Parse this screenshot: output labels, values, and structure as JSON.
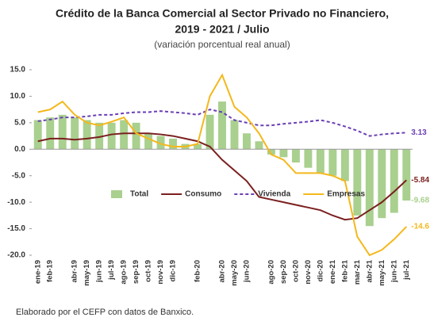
{
  "chart_data": {
    "type": "bar-line",
    "title": "Crédito de la Banca Comercial al Sector Privado no Financiero,",
    "title_line2": "2019 - 2021 / Julio",
    "subtitle": "(variación porcentual real anual)",
    "note": "Elaborado por el CEFP con datos de Banxico.",
    "categories": [
      "ene-19",
      "feb-19",
      null,
      "abr-19",
      "may-19",
      "jun-19",
      "jul-19",
      "ago-19",
      "sep-19",
      "oct-19",
      "nov-19",
      "dic-19",
      null,
      "feb-20",
      null,
      "abr-20",
      "may-20",
      "jun-20",
      null,
      "ago-20",
      "sep-20",
      "oct-20",
      "nov-20",
      "dic-20",
      "ene-21",
      "feb-21",
      "mar-21",
      "abr-21",
      "may-21",
      "jun-21",
      "jul-21"
    ],
    "ylim": [
      -20,
      15
    ],
    "yticks": [
      {
        "value": 15,
        "label": "15.0"
      },
      {
        "value": 10,
        "label": "10.0"
      },
      {
        "value": 5,
        "label": "5.0"
      },
      {
        "value": 0,
        "label": "0.0"
      },
      {
        "value": -5,
        "label": "-5.0"
      },
      {
        "value": -10,
        "label": "-10.0"
      },
      {
        "value": -15,
        "label": "-15.0"
      },
      {
        "value": -20,
        "label": "-20.0"
      }
    ],
    "series": [
      {
        "name": "Total",
        "kind": "bar",
        "color": "#a9d08e",
        "values": [
          5.5,
          6,
          6.5,
          6,
          5.5,
          5,
          5,
          5.5,
          5,
          3,
          2.5,
          2,
          1,
          1,
          6.5,
          9,
          5.5,
          3,
          1.5,
          -1,
          -1.5,
          -2.5,
          -3.5,
          -4.5,
          -5,
          -6,
          -12.5,
          -14.5,
          -13,
          -12,
          -9.68
        ]
      },
      {
        "name": "Consumo",
        "kind": "line",
        "color": "#7b1f1f",
        "values": [
          1.5,
          2,
          2,
          1.8,
          2,
          2.3,
          2.8,
          3,
          3,
          3,
          2.8,
          2.5,
          2,
          1.5,
          0.5,
          -2,
          -4,
          -6,
          -9,
          -9.5,
          -10,
          -10.5,
          -11,
          -11.5,
          -12.5,
          -13.3,
          -13,
          -11.5,
          -10,
          -8,
          -5.84
        ]
      },
      {
        "name": "Vivienda",
        "kind": "line",
        "dashed": true,
        "color": "#6a3fb5",
        "values": [
          5.3,
          5.6,
          6,
          6,
          6.2,
          6.5,
          6.5,
          6.8,
          7,
          7,
          7.2,
          7,
          6.8,
          6.5,
          7.5,
          7,
          5.5,
          5,
          4.5,
          4.5,
          4.8,
          5,
          5.2,
          5.5,
          5,
          4.3,
          3.5,
          2.5,
          2.8,
          3,
          3.13
        ]
      },
      {
        "name": "Empresas",
        "kind": "line",
        "color": "#f4b81c",
        "values": [
          7,
          7.5,
          9,
          6.5,
          5,
          4.5,
          5.2,
          6,
          3,
          2,
          1,
          0.5,
          0.5,
          1,
          10,
          14,
          8,
          6,
          3,
          -1,
          -2,
          -4.5,
          -4.5,
          -4.5,
          -5,
          -6,
          -16.5,
          -20,
          -19,
          -17,
          -14.6
        ]
      }
    ]
  }
}
